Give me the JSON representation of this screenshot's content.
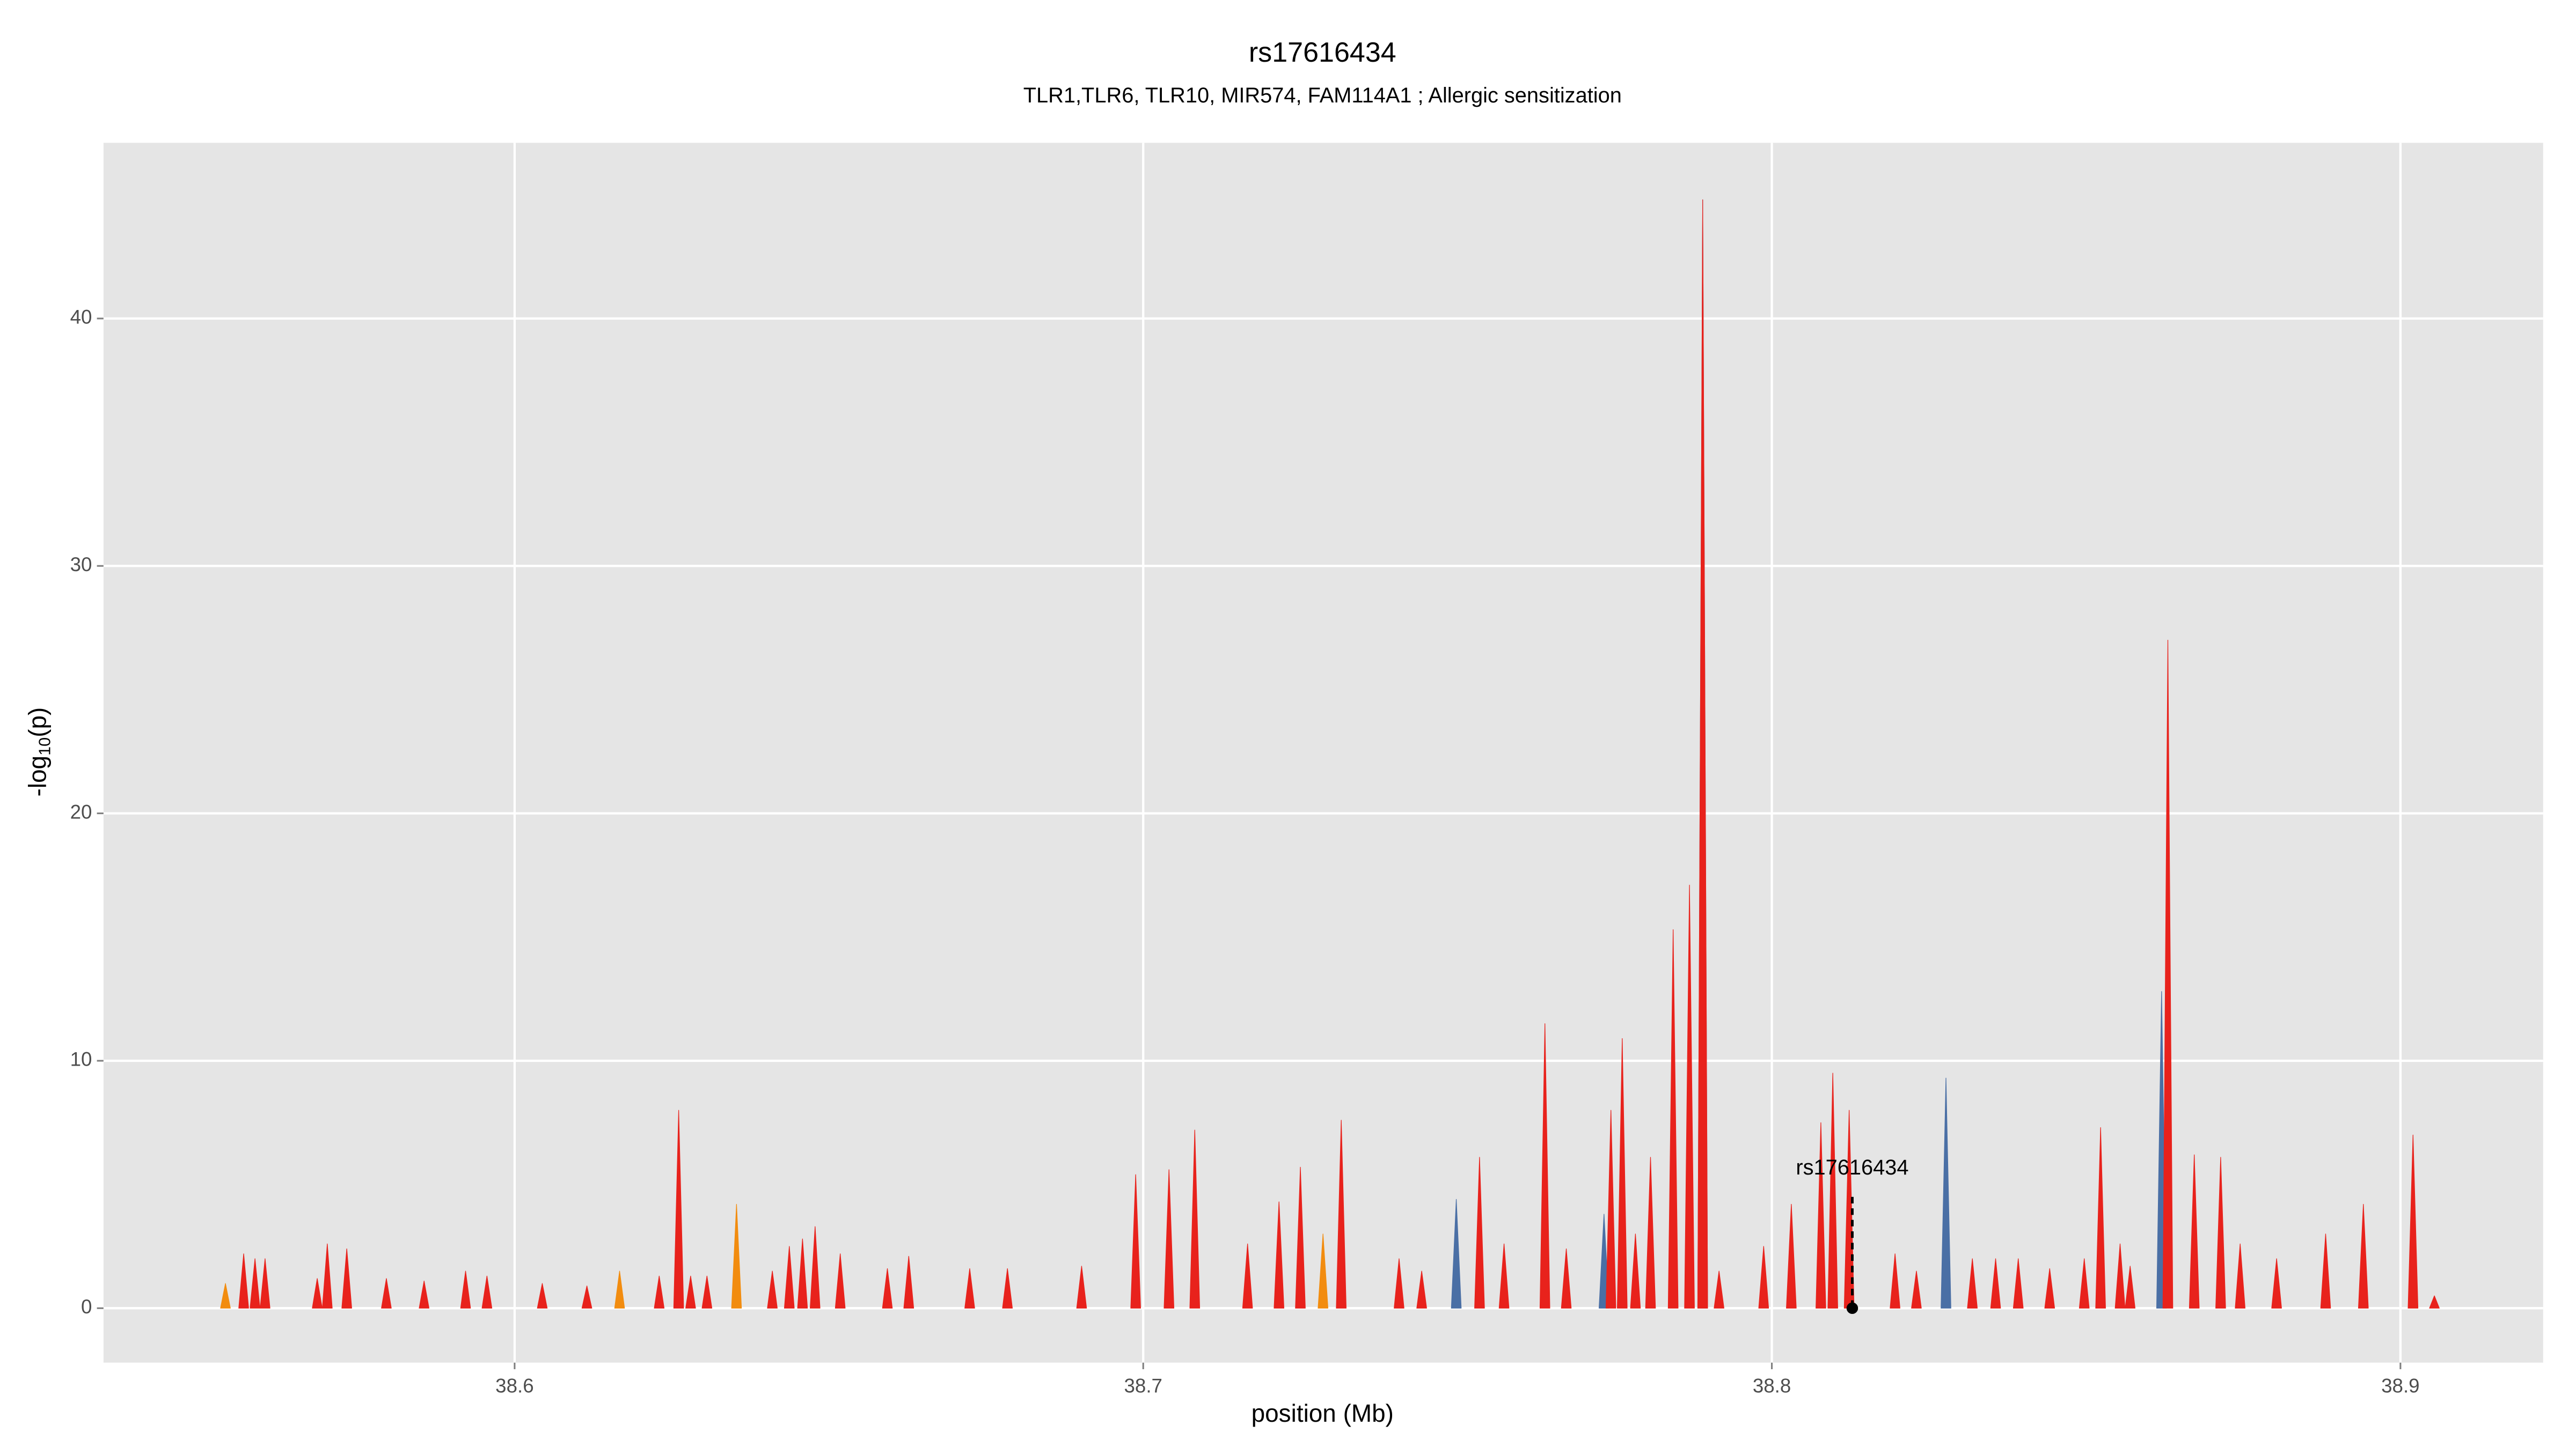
{
  "chart_data": {
    "type": "area",
    "title": "rs17616434",
    "subtitle": "TLR1,TLR6, TLR10, MIR574, FAM114A1 ; Allergic sensitization",
    "xlabel": "position (Mb)",
    "ylabel": [
      "-log",
      "10",
      "(p)"
    ],
    "xlim": [
      38.5346,
      38.9227
    ],
    "xticks": [
      38.6,
      38.7,
      38.8,
      38.9
    ],
    "ylim": [
      -2.2,
      47.1
    ],
    "yticks": [
      0,
      10,
      20,
      30,
      40
    ],
    "grid": true,
    "series": [
      {
        "color": "#4a6fa5",
        "x": [
          38.7498,
          38.7733,
          38.789,
          38.8277,
          38.862
        ],
        "values": [
          4.4,
          3.8,
          44.8,
          9.3,
          12.8
        ]
      },
      {
        "color": "#f28c0f",
        "x": [
          38.554,
          38.6167,
          38.6353,
          38.7286
        ],
        "values": [
          1,
          1.5,
          4.2,
          3
        ]
      },
      {
        "color": "#e8221c",
        "x": [
          38.5569,
          38.5587,
          38.5603,
          38.5686,
          38.5702,
          38.5733,
          38.5796,
          38.5856,
          38.5922,
          38.5956,
          38.6044,
          38.6115,
          38.623,
          38.6261,
          38.628,
          38.6306,
          38.641,
          38.6437,
          38.6458,
          38.6478,
          38.6518,
          38.6593,
          38.6627,
          38.6724,
          38.6784,
          38.6902,
          38.6988,
          38.7041,
          38.7082,
          38.7166,
          38.7216,
          38.725,
          38.7315,
          38.7407,
          38.7443,
          38.7535,
          38.7574,
          38.7639,
          38.7673,
          38.7744,
          38.7762,
          38.7783,
          38.7807,
          38.7843,
          38.7869,
          38.789,
          38.7916,
          38.7987,
          38.8031,
          38.8078,
          38.8097,
          38.8123,
          38.8196,
          38.823,
          38.8319,
          38.8356,
          38.8392,
          38.8442,
          38.8497,
          38.8523,
          38.8554,
          38.857,
          38.863,
          38.8672,
          38.8714,
          38.8745,
          38.8803,
          38.8881,
          38.8941,
          38.902,
          38.9054
        ],
        "values": [
          2.2,
          2,
          2,
          1.2,
          2.6,
          2.4,
          1.2,
          1.1,
          1.5,
          1.3,
          1,
          0.9,
          1.3,
          8,
          1.3,
          1.3,
          1.5,
          2.5,
          2.8,
          3.3,
          2.2,
          1.6,
          2.1,
          1.6,
          1.6,
          1.7,
          5.4,
          5.6,
          7.2,
          2.6,
          4.3,
          5.7,
          7.6,
          2,
          1.5,
          6.1,
          2.6,
          11.5,
          2.4,
          8,
          10.9,
          3,
          6.1,
          15.3,
          17.1,
          44.8,
          1.5,
          2.5,
          4.2,
          7.5,
          9.5,
          8,
          2.2,
          1.5,
          2,
          2,
          2,
          1.6,
          2,
          7.3,
          2.6,
          1.7,
          27,
          6.2,
          6.1,
          2.6,
          2,
          3,
          4.2,
          7,
          0.5
        ]
      }
    ],
    "snp": {
      "label": "rs17616434",
      "x": 38.8128,
      "y": 0,
      "line_top": 4.5
    }
  }
}
